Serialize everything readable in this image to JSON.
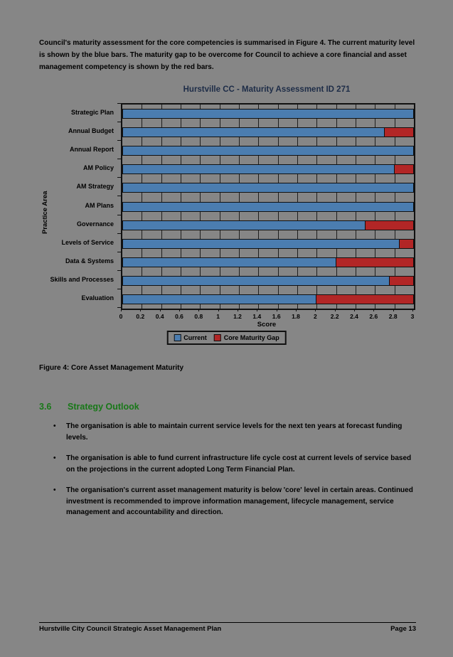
{
  "page": {
    "intro_paragraph": "Council's maturity assessment for the core competencies is summarised in Figure 4.  The current maturity level is shown by the blue bars.  The maturity gap to be overcome for Council to achieve a core financial and asset management competency is shown by the red bars.",
    "figure_caption": "Figure 4: Core Asset Management Maturity",
    "section": {
      "number": "3.6",
      "title": "Strategy Outlook",
      "bullets": [
        "The organisation is able to maintain current service levels for the next ten years at forecast funding levels.",
        "The organisation is able to fund current infrastructure life cycle cost at current levels of service based on the projections in the current adopted Long Term Financial Plan.",
        "The organisation's current asset management maturity is below 'core' level in certain areas. Continued investment is recommended to improve information management, lifecycle management, service management and accountability and direction."
      ]
    },
    "footer": {
      "left": "Hurstville City Council Strategic Asset Management Plan",
      "right": "Page 13"
    }
  },
  "chart_data": {
    "type": "bar",
    "orientation": "horizontal",
    "stacked": true,
    "title": "Hurstville CC - Maturity Assessment ID 271",
    "categories": [
      "Strategic Plan",
      "Annual Budget",
      "Annual Report",
      "AM Policy",
      "AM Strategy",
      "AM Plans",
      "Governance",
      "Levels of Service",
      "Data & Systems",
      "Skills and Processes",
      "Evaluation"
    ],
    "series": [
      {
        "name": "Current",
        "color": "#4b7db0",
        "values": [
          3.0,
          2.7,
          3.0,
          2.8,
          3.0,
          3.0,
          2.5,
          2.85,
          2.2,
          2.75,
          2.0
        ]
      },
      {
        "name": "Core Maturity Gap",
        "color": "#b22626",
        "values": [
          0,
          0.3,
          0,
          0.2,
          0,
          0,
          0.5,
          0.15,
          0.8,
          0.25,
          1.0
        ]
      }
    ],
    "xlabel": "Score",
    "ylabel": "Practice Area",
    "xlim": [
      0,
      3
    ],
    "xticks": [
      0,
      0.2,
      0.4,
      0.6,
      0.8,
      1,
      1.2,
      1.4,
      1.6,
      1.8,
      2,
      2.2,
      2.4,
      2.6,
      2.8,
      3
    ],
    "xtick_labels": [
      "0",
      "0.2",
      "0.4",
      "0.6",
      "0.8",
      "1",
      "1.2",
      "1.4",
      "1.6",
      "1.8",
      "2",
      "2.2",
      "2.4",
      "2.6",
      "2.8",
      "3"
    ],
    "grid": true,
    "legend_position": "bottom"
  }
}
